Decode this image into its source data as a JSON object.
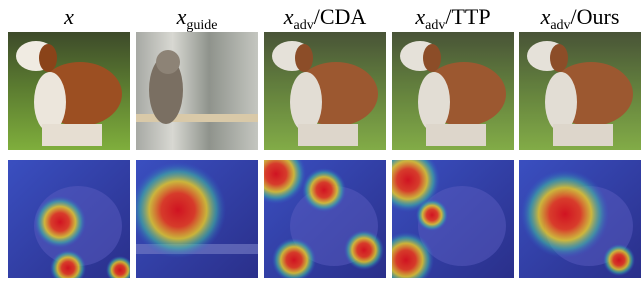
{
  "columns": [
    {
      "symbol": "x"
    },
    {
      "symbol": "x",
      "subscript": "guide"
    },
    {
      "symbol": "x",
      "subscript": "adv",
      "suffix": "/CDA"
    },
    {
      "symbol": "x",
      "subscript": "adv",
      "suffix": "/TTP"
    },
    {
      "symbol": "x",
      "subscript": "adv",
      "suffix": "/Ours"
    }
  ]
}
